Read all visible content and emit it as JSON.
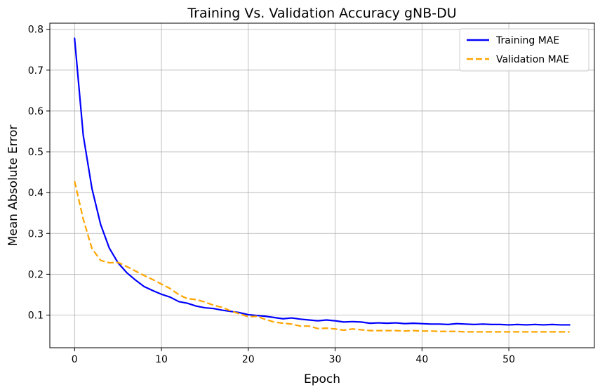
{
  "chart_data": {
    "type": "line",
    "title": "Training Vs. Validation Accuracy gNB-DU",
    "xlabel": "Epoch",
    "ylabel": "Mean Absolute Error",
    "xlim": [
      -2.85,
      59.85
    ],
    "ylim": [
      0.02,
      0.815
    ],
    "xticks": [
      0,
      10,
      20,
      30,
      40,
      50
    ],
    "yticks": [
      0.1,
      0.2,
      0.3,
      0.4,
      0.5,
      0.6,
      0.7,
      0.8
    ],
    "xtick_labels": [
      "0",
      "10",
      "20",
      "30",
      "40",
      "50"
    ],
    "ytick_labels": [
      "0.1",
      "0.2",
      "0.3",
      "0.4",
      "0.5",
      "0.6",
      "0.7",
      "0.8"
    ],
    "grid": true,
    "legend_position": "top-right",
    "x": [
      0,
      1,
      2,
      3,
      4,
      5,
      6,
      7,
      8,
      9,
      10,
      11,
      12,
      13,
      14,
      15,
      16,
      17,
      18,
      19,
      20,
      21,
      22,
      23,
      24,
      25,
      26,
      27,
      28,
      29,
      30,
      31,
      32,
      33,
      34,
      35,
      36,
      37,
      38,
      39,
      40,
      41,
      42,
      43,
      44,
      45,
      46,
      47,
      48,
      49,
      50,
      51,
      52,
      53,
      54,
      55,
      56,
      57
    ],
    "series": [
      {
        "name": "Training MAE",
        "color": "#0000ff",
        "dash": "solid",
        "values": [
          0.778,
          0.54,
          0.41,
          0.322,
          0.264,
          0.228,
          0.204,
          0.186,
          0.17,
          0.16,
          0.151,
          0.144,
          0.133,
          0.129,
          0.122,
          0.118,
          0.116,
          0.112,
          0.109,
          0.106,
          0.101,
          0.099,
          0.097,
          0.094,
          0.091,
          0.093,
          0.09,
          0.088,
          0.086,
          0.088,
          0.086,
          0.083,
          0.084,
          0.083,
          0.08,
          0.081,
          0.08,
          0.081,
          0.079,
          0.08,
          0.079,
          0.078,
          0.078,
          0.077,
          0.079,
          0.078,
          0.077,
          0.078,
          0.077,
          0.077,
          0.076,
          0.077,
          0.076,
          0.077,
          0.076,
          0.077,
          0.076,
          0.076
        ]
      },
      {
        "name": "Validation MAE",
        "color": "#ffa500",
        "dash": "dashed",
        "values": [
          0.428,
          0.335,
          0.263,
          0.234,
          0.228,
          0.229,
          0.219,
          0.208,
          0.197,
          0.187,
          0.176,
          0.165,
          0.15,
          0.14,
          0.138,
          0.132,
          0.124,
          0.119,
          0.11,
          0.103,
          0.096,
          0.097,
          0.089,
          0.083,
          0.08,
          0.078,
          0.073,
          0.073,
          0.067,
          0.068,
          0.066,
          0.063,
          0.066,
          0.064,
          0.062,
          0.062,
          0.062,
          0.062,
          0.061,
          0.062,
          0.061,
          0.061,
          0.06,
          0.06,
          0.06,
          0.059,
          0.059,
          0.059,
          0.059,
          0.059,
          0.059,
          0.059,
          0.059,
          0.059,
          0.059,
          0.059,
          0.059,
          0.059
        ]
      }
    ]
  }
}
